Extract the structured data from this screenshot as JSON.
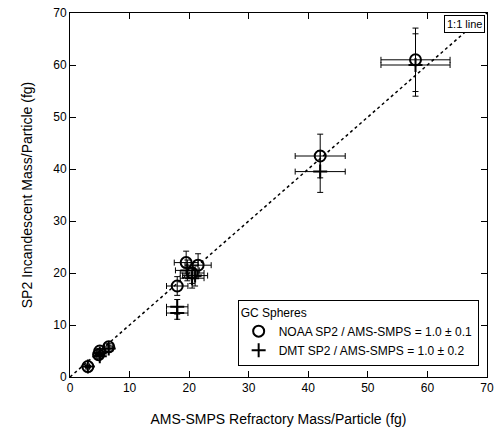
{
  "chart_data": {
    "type": "scatter",
    "x_label": "AMS-SMPS Refractory Mass/Particle (fg)",
    "y_label": "SP2 Incandescent Mass/Particle (fg)",
    "xlim": [
      0,
      70
    ],
    "ylim": [
      0,
      70
    ],
    "xticks": [
      0,
      10,
      20,
      30,
      40,
      50,
      60,
      70
    ],
    "yticks": [
      0,
      10,
      20,
      30,
      40,
      50,
      60,
      70
    ],
    "grid": false,
    "legend": "lower right",
    "legend_title": "GC Spheres",
    "series": [
      {
        "name": "NOAA SP2 / AMS-SMPS = 1.0 ± 0.1",
        "type": "scatter",
        "color": "#000000",
        "marker": "open circle",
        "x": [
          3.0,
          4.8,
          5.0,
          6.5,
          18.0,
          19.5,
          21.5,
          20.5,
          42.0,
          58.0
        ],
        "values": [
          2.0,
          4.3,
          5.0,
          5.8,
          17.5,
          22.0,
          21.5,
          20.0,
          42.5,
          61.0
        ],
        "x_error": [
          0.3,
          0.5,
          0.5,
          0.7,
          1.8,
          2.0,
          2.2,
          2.0,
          4.2,
          5.8
        ],
        "y_error": [
          0.2,
          0.4,
          0.5,
          0.6,
          1.8,
          2.2,
          2.2,
          2.0,
          4.2,
          6.1
        ]
      },
      {
        "name": "DMT SP2 / AMS-SMPS = 1.0 ± 0.2",
        "type": "scatter",
        "color": "#000000",
        "marker": "cross",
        "x": [
          3.0,
          5.0,
          5.0,
          6.5,
          18.0,
          18.0,
          19.7,
          21.0,
          20.5,
          42.0,
          58.0
        ],
        "values": [
          2.0,
          4.0,
          4.5,
          5.5,
          13.5,
          12.3,
          20.5,
          19.5,
          19.0,
          39.5,
          60.0
        ],
        "x_error": [
          0.3,
          0.5,
          0.5,
          0.7,
          1.8,
          1.8,
          2.0,
          2.1,
          2.0,
          4.2,
          5.8
        ],
        "y_error": [
          0.2,
          0.4,
          0.5,
          0.6,
          1.4,
          1.2,
          2.0,
          2.0,
          1.9,
          4.0,
          6.0
        ]
      },
      {
        "name": "1:1 line",
        "type": "line",
        "color": "#000000",
        "line_style": "dotted",
        "x": [
          0,
          70
        ],
        "values": [
          0,
          70
        ]
      }
    ]
  }
}
